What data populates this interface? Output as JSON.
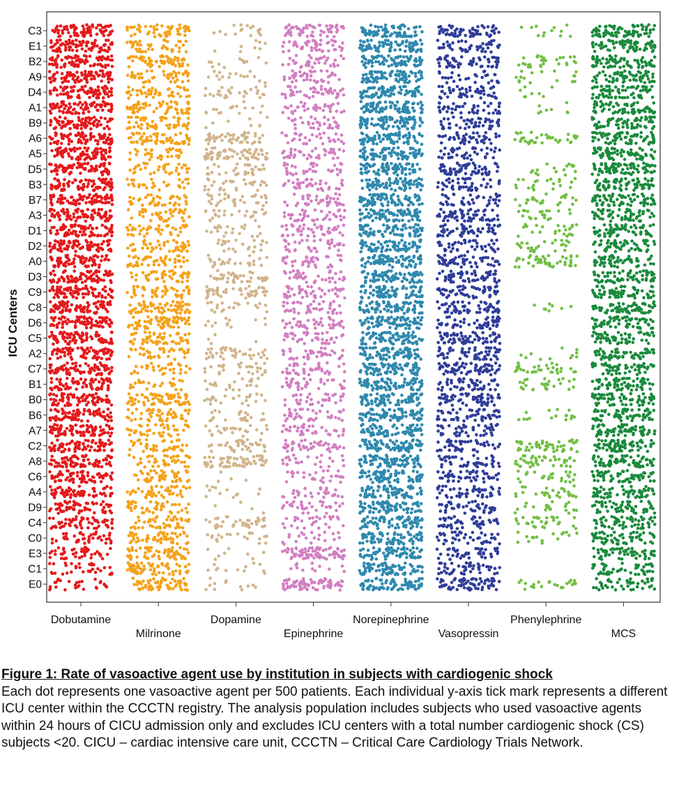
{
  "chart_data": {
    "type": "scatter",
    "ylabel": "ICU Centers",
    "centers": [
      "C3",
      "E1",
      "B2",
      "A9",
      "D4",
      "A1",
      "B9",
      "A6",
      "A5",
      "D5",
      "B3",
      "B7",
      "A3",
      "D1",
      "D2",
      "A0",
      "D3",
      "C9",
      "C8",
      "D6",
      "C5",
      "A2",
      "C7",
      "B1",
      "B0",
      "B6",
      "A7",
      "C2",
      "A8",
      "C6",
      "A4",
      "D9",
      "C4",
      "C0",
      "E3",
      "C1",
      "E0"
    ],
    "agents": [
      {
        "name": "Dobutamine",
        "color": "#e41a1c",
        "density": [
          1.0,
          1.0,
          1.0,
          1.0,
          1.0,
          1.0,
          1.0,
          1.0,
          1.0,
          1.0,
          1.0,
          1.0,
          1.0,
          1.0,
          1.0,
          1.0,
          1.0,
          1.0,
          1.0,
          1.0,
          1.0,
          1.0,
          1.0,
          1.0,
          1.0,
          1.0,
          1.0,
          1.0,
          1.0,
          0.9,
          0.8,
          0.75,
          0.7,
          0.55,
          0.55,
          0.4,
          0.35
        ]
      },
      {
        "name": "Milrinone",
        "color": "#f5a21b",
        "density": [
          0.7,
          0.5,
          0.75,
          0.6,
          0.55,
          0.75,
          0.7,
          0.75,
          0.4,
          0.45,
          0.35,
          0.5,
          0.5,
          0.5,
          0.55,
          0.6,
          0.6,
          0.6,
          0.85,
          0.9,
          0.7,
          0.5,
          0.4,
          0.3,
          0.95,
          0.6,
          0.5,
          0.5,
          0.5,
          0.6,
          0.55,
          0.55,
          0.6,
          0.7,
          0.8,
          0.8,
          0.8
        ]
      },
      {
        "name": "Dopamine",
        "color": "#d1b48c",
        "density": [
          0.2,
          0.1,
          0.15,
          0.2,
          0.35,
          0.2,
          0.1,
          0.65,
          0.8,
          0.4,
          0.35,
          0.4,
          0.3,
          0.25,
          0.3,
          0.3,
          0.5,
          0.6,
          0.25,
          0.15,
          0.05,
          0.5,
          0.35,
          0.25,
          0.3,
          0.3,
          0.3,
          0.45,
          0.75,
          0.05,
          0.15,
          0.05,
          0.45,
          0.25,
          0.1,
          0.15,
          0.15
        ]
      },
      {
        "name": "Epinephrine",
        "color": "#d27fc1",
        "density": [
          0.75,
          0.6,
          0.45,
          0.5,
          0.55,
          0.45,
          0.4,
          0.4,
          0.5,
          0.45,
          0.45,
          0.5,
          0.5,
          0.55,
          0.45,
          0.45,
          0.5,
          0.55,
          0.5,
          0.5,
          0.5,
          0.45,
          0.5,
          0.45,
          0.4,
          0.45,
          0.45,
          0.55,
          0.3,
          0.35,
          0.35,
          0.4,
          0.35,
          0.25,
          0.95,
          0.15,
          0.9
        ]
      },
      {
        "name": "Norepinephrine",
        "color": "#2f89ae",
        "density": [
          1.0,
          1.0,
          1.0,
          1.0,
          1.0,
          1.0,
          1.0,
          1.0,
          1.0,
          1.0,
          1.0,
          1.0,
          1.0,
          1.0,
          1.0,
          1.0,
          1.0,
          1.0,
          1.0,
          1.0,
          1.0,
          1.0,
          1.0,
          1.0,
          1.0,
          1.0,
          1.0,
          1.0,
          1.0,
          1.0,
          1.0,
          1.0,
          1.0,
          1.0,
          1.0,
          1.0,
          1.0
        ]
      },
      {
        "name": "Vasopressin",
        "color": "#2f3d99",
        "density": [
          0.75,
          0.6,
          0.7,
          0.35,
          0.65,
          0.55,
          0.6,
          0.55,
          0.5,
          0.85,
          0.55,
          0.5,
          0.75,
          0.7,
          0.55,
          0.7,
          0.7,
          0.7,
          0.75,
          0.65,
          0.85,
          0.7,
          0.85,
          0.6,
          0.8,
          0.65,
          0.55,
          0.55,
          0.55,
          0.6,
          0.6,
          0.55,
          0.6,
          0.55,
          0.55,
          0.6,
          0.85
        ]
      },
      {
        "name": "Phenylephrine",
        "color": "#72bf44",
        "density": [
          0.15,
          0.0,
          0.35,
          0.2,
          0.1,
          0.1,
          0.0,
          0.45,
          0.0,
          0.2,
          0.25,
          0.3,
          0.25,
          0.3,
          0.3,
          0.55,
          0.0,
          0.0,
          0.1,
          0.0,
          0.0,
          0.15,
          0.4,
          0.35,
          0.0,
          0.2,
          0.0,
          0.6,
          0.5,
          0.3,
          0.35,
          0.25,
          0.35,
          0.2,
          0.0,
          0.0,
          0.3
        ]
      },
      {
        "name": "MCS",
        "color": "#1a8a3c",
        "density": [
          1.0,
          0.9,
          0.9,
          0.8,
          0.85,
          0.8,
          0.8,
          0.85,
          0.85,
          0.95,
          0.9,
          0.8,
          0.7,
          0.75,
          0.7,
          0.75,
          0.85,
          0.85,
          0.8,
          0.8,
          0.75,
          0.75,
          0.75,
          0.85,
          0.85,
          0.85,
          0.85,
          0.85,
          0.85,
          0.8,
          0.75,
          0.7,
          0.7,
          0.7,
          0.7,
          0.6,
          0.55
        ]
      }
    ]
  },
  "caption": {
    "title": "Figure 1: Rate of vasoactive agent use by institution in subjects with cardiogenic shock",
    "body": "Each dot represents one vasoactive agent per 500 patients. Each individual y-axis tick mark represents a different ICU center within the CCCTN registry. The analysis population includes subjects who used vasoactive agents within 24 hours of CICU admission only and excludes ICU centers with a total number cardiogenic shock (CS) subjects <20. CICU – cardiac intensive care unit, CCCTN – Critical Care Cardiology Trials Network."
  }
}
